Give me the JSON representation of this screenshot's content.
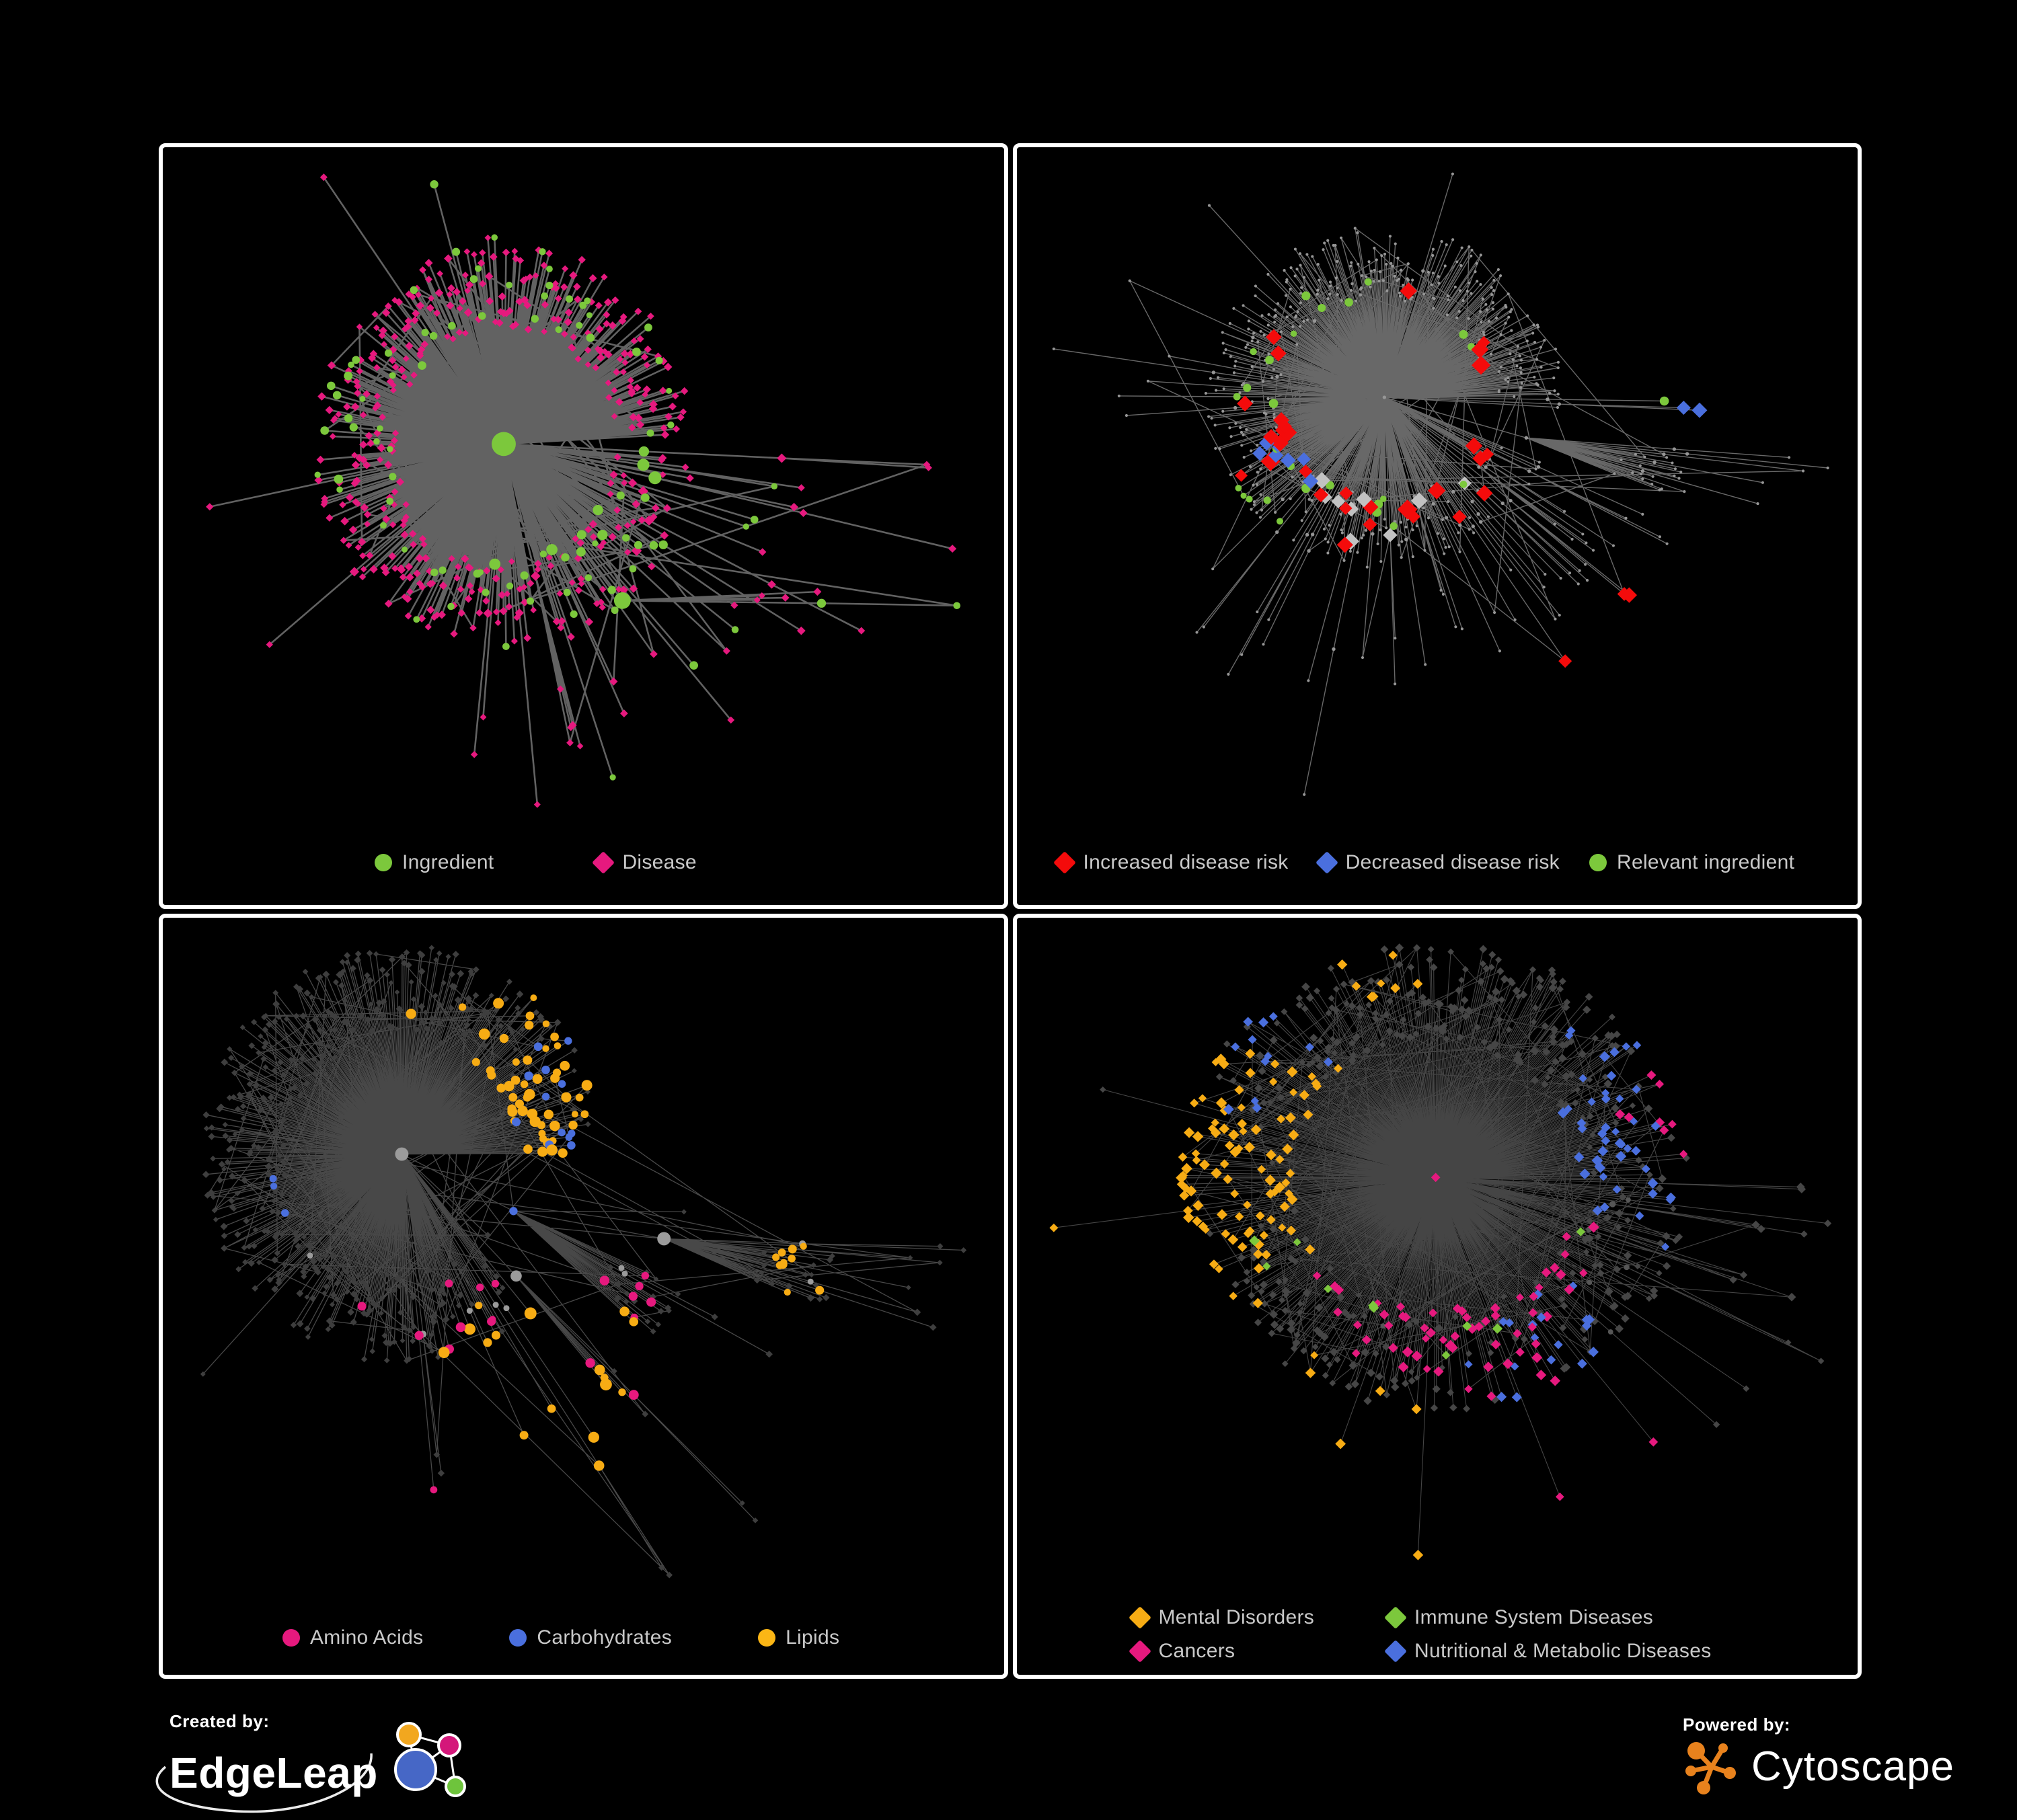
{
  "panels": [
    {
      "id": "ingredient-disease",
      "legend": [
        {
          "label": "Ingredient",
          "shape": "circle",
          "color": "#7CC83C"
        },
        {
          "label": "Disease",
          "shape": "diamond",
          "color": "#E6197E"
        }
      ],
      "network": {
        "seed": 7,
        "node_count": 520,
        "hub_bias": 1.5,
        "step": 96,
        "decay": 0.93,
        "extra_edges": 45,
        "extra_depth": 4,
        "margins": [
          70,
          45,
          70,
          150
        ],
        "edge": {
          "color": "#6A6A6A",
          "width": 2.6,
          "opacity": 0.92
        },
        "base": {
          "mode": "mix",
          "circle_color": "#7CC83C",
          "diamond_color": "#E6197E"
        },
        "highlights": []
      }
    },
    {
      "id": "disease-risk",
      "legend": [
        {
          "label": "Increased disease risk",
          "shape": "diamond",
          "color": "#F40B0B"
        },
        {
          "label": "Decreased disease risk",
          "shape": "diamond",
          "color": "#4A6FDE"
        },
        {
          "label": "Relevant ingredient",
          "shape": "circle",
          "color": "#7CC83C"
        }
      ],
      "network": {
        "seed": 19,
        "node_count": 560,
        "hub_bias": 1.38,
        "step": 100,
        "decay": 0.94,
        "extra_edges": 70,
        "extra_depth": 4,
        "margins": [
          55,
          40,
          45,
          165
        ],
        "edge": {
          "color": "#828282",
          "width": 1.4,
          "opacity": 0.8
        },
        "base": {
          "mode": "dots",
          "color": "#969696",
          "r_internal": 2.7,
          "r_leaf": 2.1
        },
        "highlights": [
          {
            "shape": "diamond",
            "color": "#F40B0B",
            "count": 30,
            "bias": [
              0.42,
              0.36
            ],
            "spread": 0.3,
            "size": [
              9,
              15
            ]
          },
          {
            "shape": "diamond",
            "color": "#F40B0B",
            "count": 3,
            "bias": [
              0.72,
              0.72
            ],
            "spread": 0.05,
            "size": [
              10,
              13
            ]
          },
          {
            "shape": "diamond",
            "color": "#C2C2C2",
            "count": 9,
            "bias": [
              0.44,
              0.4
            ],
            "spread": 0.26,
            "size": [
              9,
              13
            ]
          },
          {
            "shape": "diamond",
            "color": "#4A6FDE",
            "count": 7,
            "bias": [
              0.33,
              0.4
            ],
            "spread": 0.12,
            "size": [
              8,
              12
            ]
          },
          {
            "shape": "diamond",
            "color": "#4A6FDE",
            "count": 2,
            "bias": [
              0.8,
              0.34
            ],
            "spread": 0.03,
            "size": [
              10,
              12
            ]
          },
          {
            "shape": "circle",
            "color": "#7CC83C",
            "count": 26,
            "bias": [
              0.4,
              0.36
            ],
            "spread": 0.34,
            "size": [
              4.5,
              7
            ]
          },
          {
            "shape": "circle",
            "color": "#7CC83C",
            "count": 1,
            "bias": [
              0.78,
              0.33
            ],
            "spread": 0.02,
            "size": [
              6,
              7
            ]
          }
        ]
      }
    },
    {
      "id": "nutrient-classes",
      "legend": [
        {
          "label": "Amino Acids",
          "shape": "circle",
          "color": "#E6197E"
        },
        {
          "label": "Carbohydrates",
          "shape": "circle",
          "color": "#4A6FDE"
        },
        {
          "label": "Lipids",
          "shape": "circle",
          "color": "#FBB615"
        }
      ],
      "network": {
        "seed": 31,
        "node_count": 560,
        "hub_bias": 1.6,
        "step": 94,
        "decay": 0.93,
        "extra_edges": 110,
        "extra_depth": 4,
        "margins": [
          60,
          45,
          60,
          150
        ],
        "edge": {
          "color": "#8F8F8F",
          "width": 1.3,
          "opacity": 0.5
        },
        "base": {
          "mode": "hub_leaf",
          "internal_color": "#9B9B9B",
          "leaf_color": "#3E3E3E",
          "leaf_size": 4.6,
          "r_base": 4,
          "r_per_child": 0.55,
          "r_max": 10
        },
        "highlights": [
          {
            "shape": "circle",
            "color": "#F7AC14",
            "count": 52,
            "bias": [
              0.4,
              0.27
            ],
            "spread": 0.22,
            "size": [
              5,
              8.5
            ]
          },
          {
            "shape": "circle",
            "color": "#F7AC14",
            "count": 16,
            "bias": [
              0.46,
              0.62
            ],
            "spread": 0.1,
            "size": [
              5.5,
              9
            ]
          },
          {
            "shape": "circle",
            "color": "#F7AC14",
            "count": 10,
            "bias": [
              0.75,
              0.45
            ],
            "spread": 0.3,
            "size": [
              5,
              7
            ]
          },
          {
            "shape": "circle",
            "color": "#4A6FDE",
            "count": 13,
            "bias": [
              0.45,
              0.3
            ],
            "spread": 0.14,
            "size": [
              5,
              7.5
            ]
          },
          {
            "shape": "circle",
            "color": "#4A6FDE",
            "count": 3,
            "bias": [
              0.15,
              0.35
            ],
            "spread": 0.25,
            "size": [
              5,
              6.5
            ]
          },
          {
            "shape": "circle",
            "color": "#E6197E",
            "count": 18,
            "bias": [
              0.5,
              0.62
            ],
            "spread": 0.45,
            "size": [
              5,
              8
            ]
          }
        ]
      }
    },
    {
      "id": "disease-classes",
      "legend": [
        {
          "label": "Mental Disorders",
          "shape": "diamond",
          "color": "#F7AC14"
        },
        {
          "label": "Immune System Diseases",
          "shape": "diamond",
          "color": "#7CC83C"
        },
        {
          "label": "Cancers",
          "shape": "diamond",
          "color": "#E6197E"
        },
        {
          "label": "Nutritional & Metabolic Diseases",
          "shape": "diamond",
          "color": "#4A6FDE"
        }
      ],
      "network": {
        "seed": 47,
        "node_count": 640,
        "hub_bias": 1.55,
        "step": 92,
        "decay": 0.93,
        "extra_edges": 150,
        "extra_depth": 4,
        "margins": [
          55,
          45,
          45,
          180
        ],
        "edge": {
          "color": "#9A9A9A",
          "width": 1.1,
          "opacity": 0.45
        },
        "base": {
          "mode": "hub_leaf",
          "internal_color": "#565656",
          "leaf_color": "#464646",
          "leaf_size": 5.4,
          "r_base": 3.5,
          "r_per_child": 0.4,
          "r_max": 7.5
        },
        "highlights": [
          {
            "shape": "diamond",
            "color": "#F7AC14",
            "count": 95,
            "bias": [
              0.2,
              0.33
            ],
            "spread": 0.16,
            "size": [
              6,
              8.5
            ]
          },
          {
            "shape": "diamond",
            "color": "#F7AC14",
            "count": 8,
            "bias": [
              0.42,
              0.08
            ],
            "spread": 0.1,
            "size": [
              6,
              8
            ]
          },
          {
            "shape": "diamond",
            "color": "#F7AC14",
            "count": 6,
            "bias": [
              0.33,
              0.88
            ],
            "spread": 0.12,
            "size": [
              6,
              8
            ]
          },
          {
            "shape": "diamond",
            "color": "#E6197E",
            "count": 55,
            "bias": [
              0.52,
              0.44
            ],
            "spread": 0.16,
            "size": [
              6,
              8.5
            ]
          },
          {
            "shape": "diamond",
            "color": "#E6197E",
            "count": 8,
            "bias": [
              0.88,
              0.2
            ],
            "spread": 0.06,
            "size": [
              6,
              8
            ]
          },
          {
            "shape": "diamond",
            "color": "#E6197E",
            "count": 8,
            "bias": [
              0.65,
              0.85
            ],
            "spread": 0.2,
            "size": [
              6,
              8
            ]
          },
          {
            "shape": "diamond",
            "color": "#4A6FDE",
            "count": 45,
            "bias": [
              0.72,
              0.3
            ],
            "spread": 0.3,
            "size": [
              6,
              8.5
            ]
          },
          {
            "shape": "diamond",
            "color": "#4A6FDE",
            "count": 18,
            "bias": [
              0.63,
              0.58
            ],
            "spread": 0.1,
            "size": [
              6,
              8
            ]
          },
          {
            "shape": "diamond",
            "color": "#4A6FDE",
            "count": 12,
            "bias": [
              0.25,
              0.15
            ],
            "spread": 0.2,
            "size": [
              6,
              8
            ]
          },
          {
            "shape": "diamond",
            "color": "#7CC83C",
            "count": 10,
            "bias": [
              0.48,
              0.4
            ],
            "spread": 0.4,
            "size": [
              6,
              8
            ]
          }
        ]
      }
    }
  ],
  "footer": {
    "created_by": "Created by:",
    "edgeleap_name": "EdgeLeap",
    "powered_by": "Powered by:",
    "cytoscape_name": "Cytoscape",
    "edgeleap_node_colors": {
      "blue": "#4667C6",
      "orange": "#F2A71F",
      "pink": "#D4177A",
      "green": "#6EC43C"
    },
    "cytoscape_color": "#E8821D"
  }
}
